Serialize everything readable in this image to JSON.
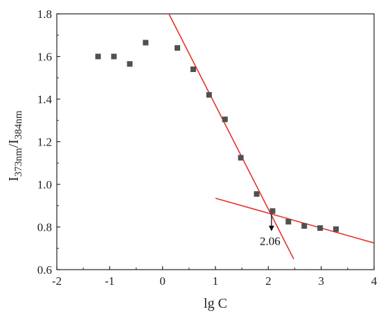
{
  "chart_data": {
    "type": "scatter",
    "xlabel": "lg C",
    "ylabel": {
      "base": "I",
      "sub1": "373nm",
      "sep": "/I",
      "sub2": "384nm"
    },
    "xlim": [
      -2,
      4
    ],
    "ylim": [
      0.6,
      1.8
    ],
    "xticks": [
      "-2",
      "-1",
      "0",
      "1",
      "2",
      "3",
      "4"
    ],
    "yticks": [
      "0.6",
      "0.8",
      "1.0",
      "1.2",
      "1.4",
      "1.6",
      "1.8"
    ],
    "grid": false,
    "legend": "none",
    "series": [
      {
        "marker": "square",
        "color": "#505050",
        "points": [
          {
            "x": -1.22,
            "y": 1.6
          },
          {
            "x": -0.92,
            "y": 1.6
          },
          {
            "x": -0.62,
            "y": 1.565
          },
          {
            "x": -0.32,
            "y": 1.665
          },
          {
            "x": 0.28,
            "y": 1.64
          },
          {
            "x": 0.58,
            "y": 1.54
          },
          {
            "x": 0.88,
            "y": 1.42
          },
          {
            "x": 1.18,
            "y": 1.305
          },
          {
            "x": 1.48,
            "y": 1.125
          },
          {
            "x": 1.78,
            "y": 0.955
          },
          {
            "x": 2.08,
            "y": 0.875
          },
          {
            "x": 2.38,
            "y": 0.825
          },
          {
            "x": 2.68,
            "y": 0.805
          },
          {
            "x": 2.98,
            "y": 0.795
          },
          {
            "x": 3.28,
            "y": 0.79
          }
        ]
      }
    ],
    "fit_lines": [
      {
        "color": "#e8302a",
        "from": {
          "x": 0.12,
          "y": 1.8
        },
        "to": {
          "x": 2.48,
          "y": 0.65
        }
      },
      {
        "color": "#e8302a",
        "from": {
          "x": 1.0,
          "y": 0.935
        },
        "to": {
          "x": 4.0,
          "y": 0.725
        }
      }
    ],
    "annotation": {
      "label": "2.06",
      "x": 2.06,
      "arrow_from_y": 0.86,
      "arrow_to_y": 0.78
    }
  }
}
